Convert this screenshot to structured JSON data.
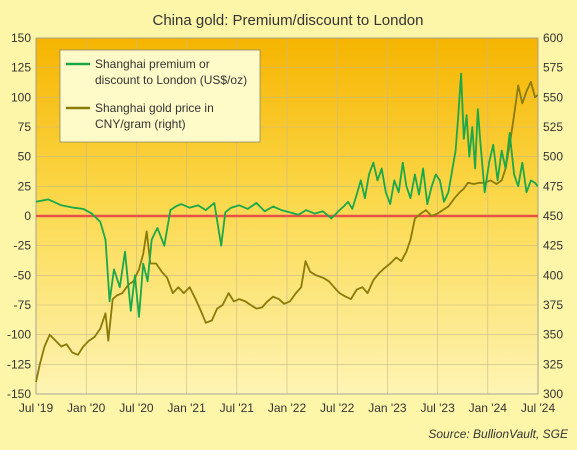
{
  "chart_data": {
    "type": "line",
    "title": "China gold: Premium/discount  to London",
    "source": "Source: BullionVault, SGE",
    "x_ticks": [
      "Jul '19",
      "Jan '20",
      "Jul '20",
      "Jan '21",
      "Jul '21",
      "Jan '22",
      "Jul '22",
      "Jan '23",
      "Jul '23",
      "Jan '24",
      "Jul '24"
    ],
    "x_range": [
      "2019-07-01",
      "2024-07-01"
    ],
    "y_left": {
      "ticks": [
        150,
        125,
        100,
        75,
        50,
        25,
        0,
        -25,
        -50,
        -75,
        -100,
        -125,
        -150
      ],
      "range": [
        -150,
        150
      ]
    },
    "y_right": {
      "ticks": [
        600,
        575,
        550,
        525,
        500,
        475,
        450,
        425,
        400,
        375,
        350,
        325,
        300
      ],
      "range": [
        300,
        600
      ]
    },
    "zero_line_color": "#e8504a",
    "grid": true,
    "legend_position": "top-left",
    "series": [
      {
        "name": "Shanghai premium or discount to London (US$/oz)",
        "legend_lines": [
          "Shanghai premium or",
          "discount to London (US$/oz)"
        ],
        "axis": "left",
        "color": "#1aa84a",
        "x": [
          "2019-07-01",
          "2019-08-15",
          "2019-10-01",
          "2019-11-15",
          "2019-12-20",
          "2020-01-20",
          "2020-02-20",
          "2020-03-10",
          "2020-03-25",
          "2020-04-10",
          "2020-05-01",
          "2020-05-20",
          "2020-06-10",
          "2020-06-25",
          "2020-07-10",
          "2020-07-25",
          "2020-08-10",
          "2020-08-25",
          "2020-09-15",
          "2020-10-10",
          "2020-11-01",
          "2020-11-20",
          "2020-12-10",
          "2021-01-10",
          "2021-02-10",
          "2021-03-10",
          "2021-04-10",
          "2021-05-05",
          "2021-05-20",
          "2021-06-10",
          "2021-07-10",
          "2021-08-10",
          "2021-09-10",
          "2021-10-10",
          "2021-11-10",
          "2021-12-10",
          "2022-01-10",
          "2022-02-10",
          "2022-03-10",
          "2022-04-10",
          "2022-05-10",
          "2022-06-10",
          "2022-07-10",
          "2022-07-25",
          "2022-08-10",
          "2022-08-25",
          "2022-09-10",
          "2022-09-25",
          "2022-10-10",
          "2022-10-25",
          "2022-11-10",
          "2022-11-25",
          "2022-12-10",
          "2022-12-25",
          "2023-01-10",
          "2023-01-25",
          "2023-02-10",
          "2023-02-25",
          "2023-03-10",
          "2023-03-25",
          "2023-04-10",
          "2023-04-25",
          "2023-05-10",
          "2023-05-25",
          "2023-06-10",
          "2023-06-25",
          "2023-07-10",
          "2023-07-25",
          "2023-08-10",
          "2023-08-25",
          "2023-09-05",
          "2023-09-15",
          "2023-09-25",
          "2023-10-05",
          "2023-10-15",
          "2023-10-25",
          "2023-11-05",
          "2023-11-15",
          "2023-11-25",
          "2023-12-05",
          "2023-12-20",
          "2024-01-05",
          "2024-01-20",
          "2024-02-05",
          "2024-02-20",
          "2024-03-05",
          "2024-03-20",
          "2024-04-05",
          "2024-04-20",
          "2024-05-05",
          "2024-05-20",
          "2024-06-05",
          "2024-06-20",
          "2024-06-30"
        ],
        "values": [
          12,
          14,
          9,
          7,
          6,
          2,
          -5,
          -20,
          -72,
          -45,
          -60,
          -30,
          -80,
          -50,
          -85,
          -40,
          -55,
          -20,
          -10,
          -25,
          5,
          8,
          10,
          7,
          9,
          5,
          11,
          -25,
          3,
          7,
          9,
          6,
          11,
          4,
          8,
          5,
          3,
          1,
          5,
          2,
          4,
          -2,
          5,
          8,
          12,
          6,
          18,
          30,
          15,
          35,
          45,
          30,
          40,
          20,
          10,
          30,
          20,
          45,
          25,
          15,
          35,
          18,
          40,
          10,
          25,
          35,
          30,
          12,
          20,
          40,
          55,
          85,
          120,
          65,
          85,
          50,
          75,
          40,
          90,
          60,
          20,
          45,
          60,
          30,
          55,
          40,
          70,
          35,
          25,
          45,
          20,
          30,
          28,
          25
        ]
      },
      {
        "name": "Shanghai gold price in CNY/gram (right)",
        "legend_lines": [
          "Shanghai gold price in",
          "CNY/gram (right)"
        ],
        "axis": "right",
        "color": "#8a7a08",
        "x": [
          "2019-07-01",
          "2019-07-15",
          "2019-08-01",
          "2019-08-20",
          "2019-09-10",
          "2019-10-01",
          "2019-10-20",
          "2019-11-10",
          "2019-12-01",
          "2019-12-20",
          "2020-01-10",
          "2020-01-30",
          "2020-02-20",
          "2020-03-10",
          "2020-03-20",
          "2020-04-05",
          "2020-04-20",
          "2020-05-10",
          "2020-06-01",
          "2020-06-20",
          "2020-07-10",
          "2020-07-25",
          "2020-08-07",
          "2020-08-20",
          "2020-09-10",
          "2020-10-01",
          "2020-10-20",
          "2020-11-10",
          "2020-11-30",
          "2020-12-20",
          "2021-01-10",
          "2021-02-01",
          "2021-02-20",
          "2021-03-10",
          "2021-04-01",
          "2021-04-20",
          "2021-05-10",
          "2021-06-01",
          "2021-06-20",
          "2021-07-10",
          "2021-08-01",
          "2021-08-20",
          "2021-09-10",
          "2021-10-01",
          "2021-10-20",
          "2021-11-10",
          "2021-12-01",
          "2021-12-20",
          "2022-01-10",
          "2022-02-01",
          "2022-02-20",
          "2022-03-08",
          "2022-03-25",
          "2022-04-15",
          "2022-05-10",
          "2022-06-01",
          "2022-06-20",
          "2022-07-10",
          "2022-08-01",
          "2022-08-20",
          "2022-09-10",
          "2022-10-01",
          "2022-10-20",
          "2022-11-10",
          "2022-12-01",
          "2022-12-20",
          "2023-01-10",
          "2023-02-01",
          "2023-02-20",
          "2023-03-10",
          "2023-03-25",
          "2023-04-10",
          "2023-05-01",
          "2023-05-20",
          "2023-06-10",
          "2023-07-01",
          "2023-07-20",
          "2023-08-10",
          "2023-09-01",
          "2023-09-20",
          "2023-10-05",
          "2023-10-20",
          "2023-11-10",
          "2023-12-01",
          "2023-12-20",
          "2024-01-10",
          "2024-02-01",
          "2024-02-20",
          "2024-03-05",
          "2024-03-20",
          "2024-04-05",
          "2024-04-20",
          "2024-05-05",
          "2024-05-20",
          "2024-06-05",
          "2024-06-20",
          "2024-06-30"
        ],
        "values": [
          310,
          325,
          340,
          350,
          345,
          340,
          342,
          335,
          333,
          340,
          345,
          348,
          355,
          368,
          345,
          380,
          383,
          385,
          392,
          395,
          405,
          418,
          437,
          410,
          410,
          403,
          398,
          385,
          390,
          385,
          390,
          380,
          370,
          360,
          362,
          372,
          375,
          385,
          378,
          380,
          378,
          375,
          372,
          373,
          378,
          382,
          380,
          376,
          378,
          385,
          390,
          412,
          403,
          400,
          398,
          395,
          390,
          385,
          382,
          380,
          388,
          390,
          385,
          396,
          402,
          406,
          410,
          415,
          412,
          420,
          430,
          448,
          452,
          455,
          450,
          452,
          455,
          458,
          465,
          470,
          473,
          478,
          477,
          478,
          478,
          480,
          477,
          480,
          490,
          510,
          535,
          560,
          545,
          555,
          563,
          550,
          552
        ]
      }
    ]
  }
}
